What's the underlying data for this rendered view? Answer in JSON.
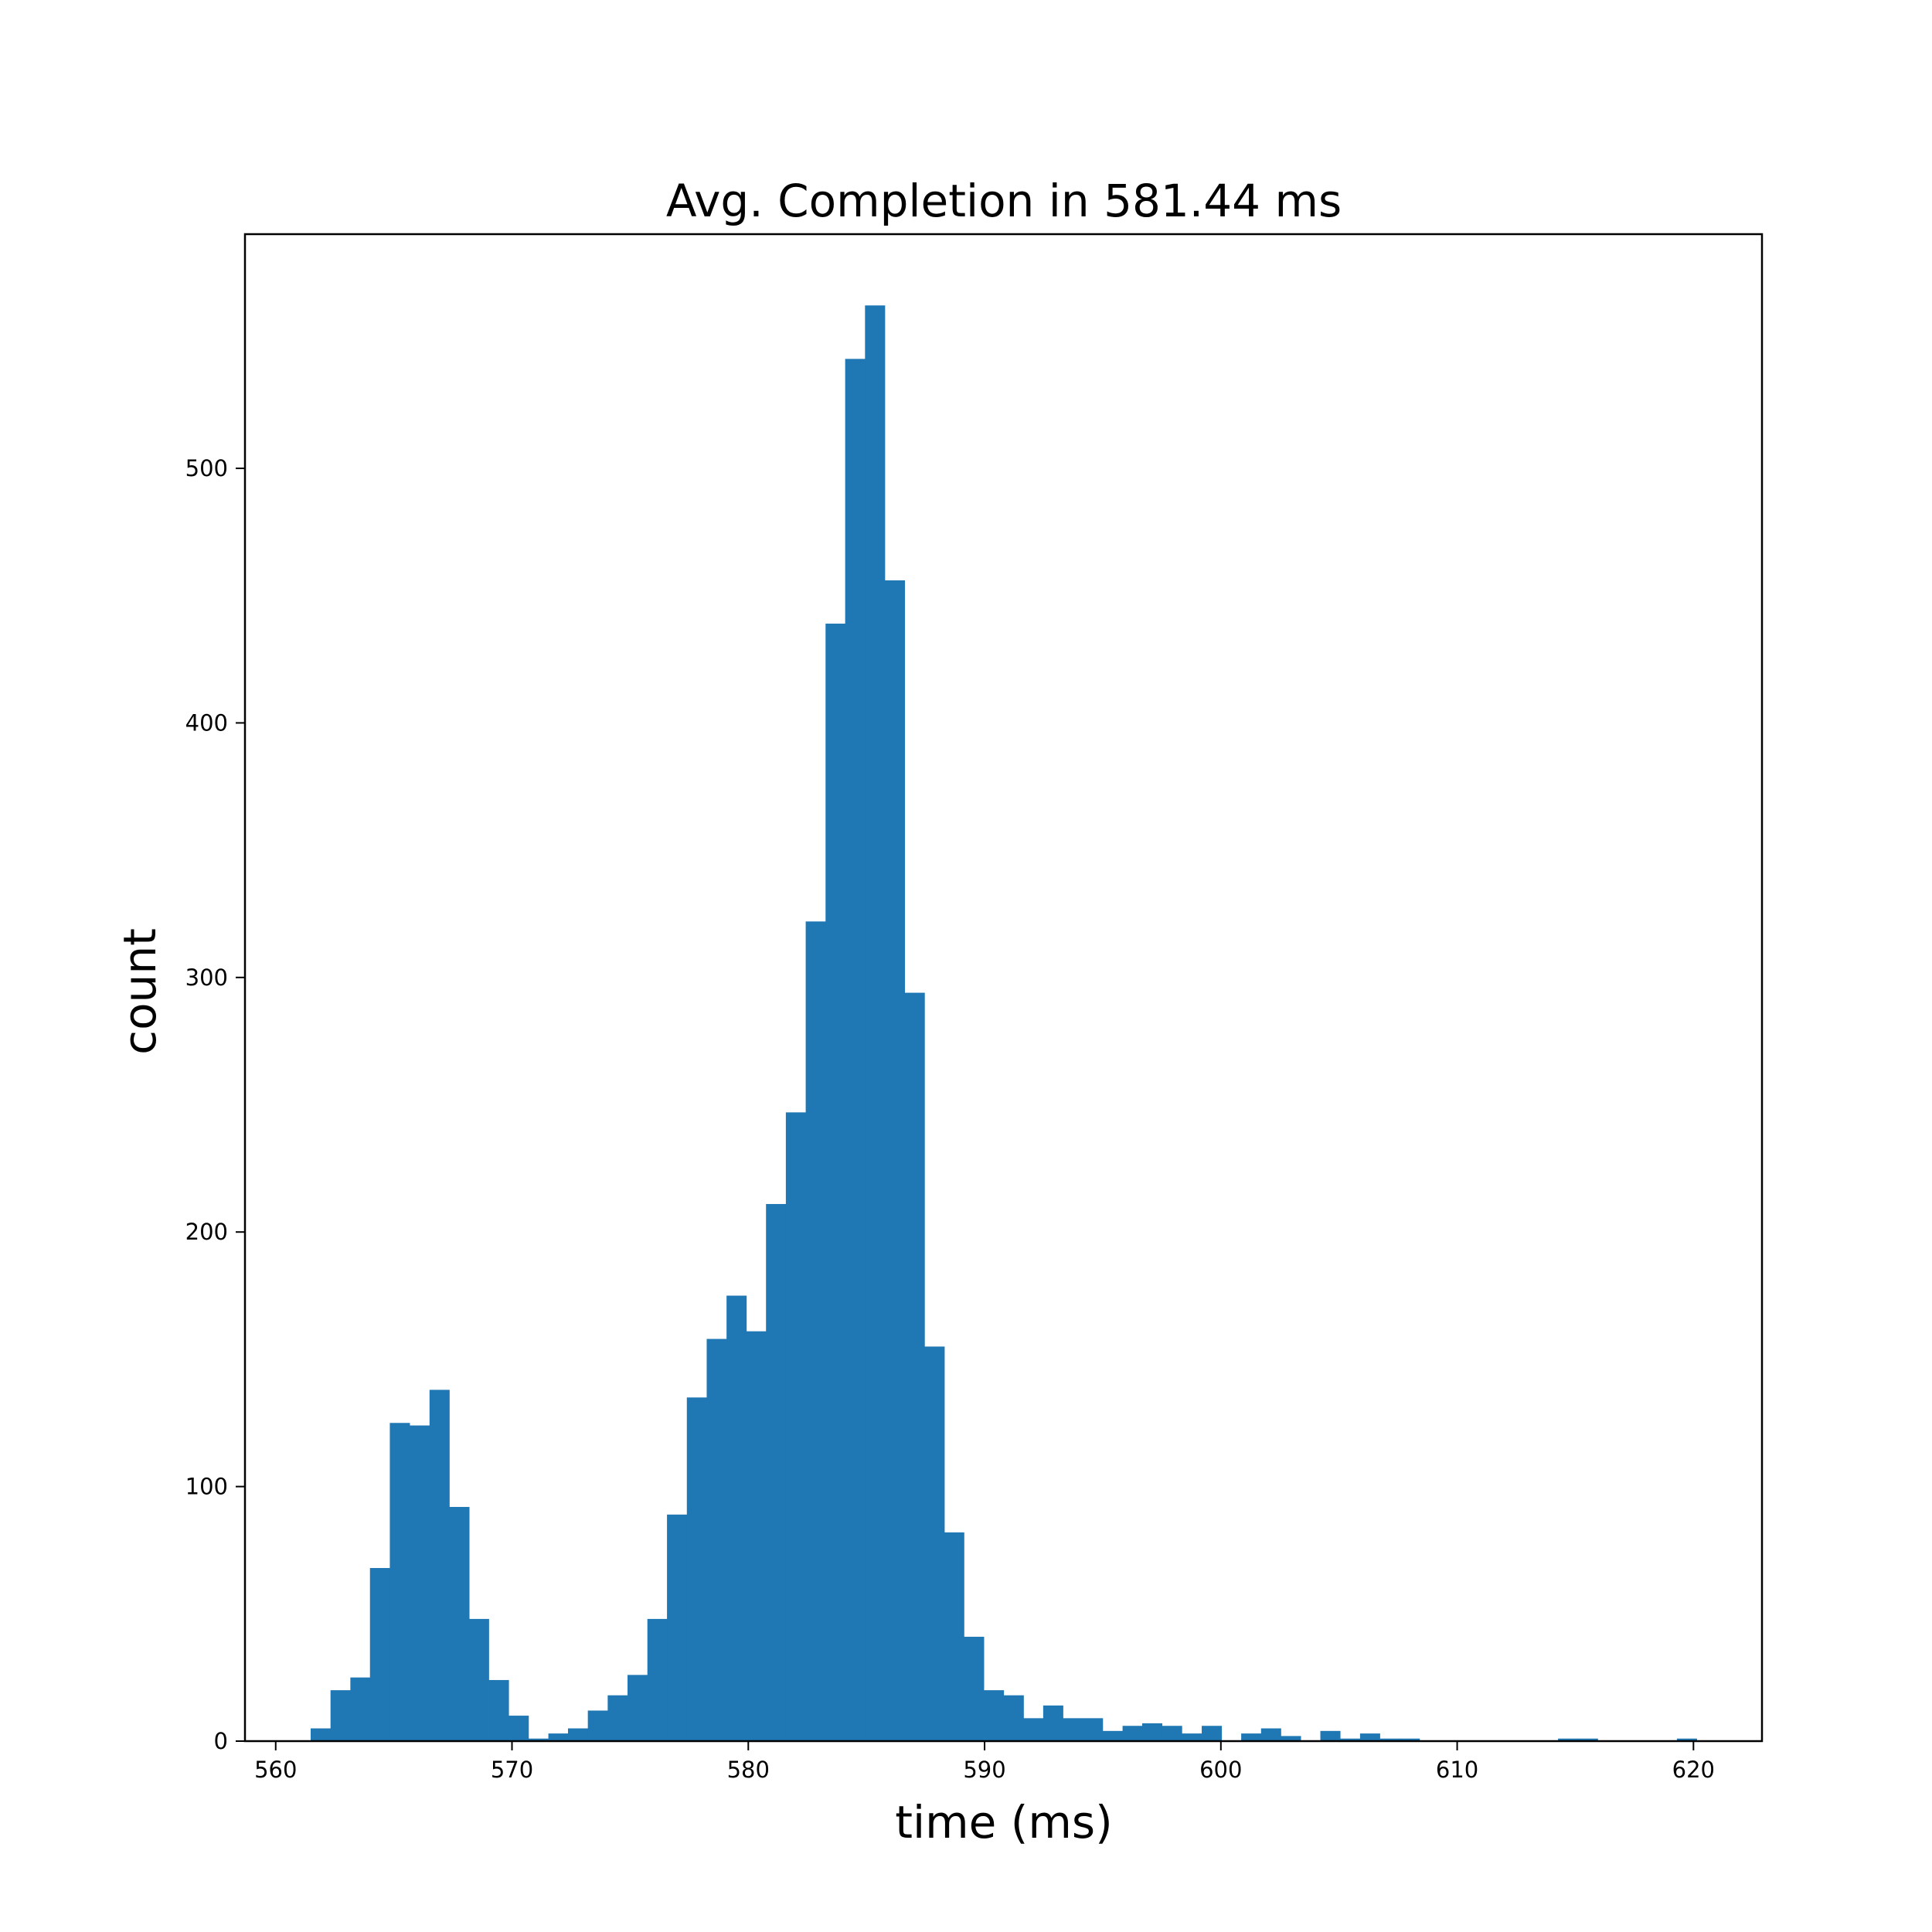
{
  "chart_data": {
    "type": "bar",
    "title": "Avg. Completion in 581.44 ms",
    "xlabel": "time (ms)",
    "ylabel": "count",
    "xlim": [
      558.7,
      622.9
    ],
    "ylim": [
      0,
      592
    ],
    "x_ticks": [
      560,
      570,
      580,
      590,
      600,
      610,
      620
    ],
    "x_tick_labels": [
      "560",
      "570",
      "580",
      "590",
      "600",
      "610",
      "620"
    ],
    "y_ticks": [
      0,
      100,
      200,
      300,
      400,
      500
    ],
    "y_tick_labels": [
      "0",
      "100",
      "200",
      "300",
      "400",
      "500"
    ],
    "bin_width": 0.838,
    "bin_left_edges": [
      561.48,
      562.32,
      563.16,
      563.99,
      564.83,
      565.67,
      566.51,
      567.35,
      568.18,
      569.02,
      569.86,
      570.7,
      571.54,
      572.37,
      573.21,
      574.05,
      574.89,
      575.73,
      576.56,
      577.4,
      578.24,
      579.08,
      579.91,
      580.75,
      581.59,
      582.43,
      583.27,
      584.1,
      584.94,
      585.78,
      586.62,
      587.46,
      588.29,
      589.13,
      589.97,
      590.81,
      591.65,
      592.48,
      593.32,
      594.16,
      595.0,
      595.84,
      596.67,
      597.51,
      598.35,
      599.19,
      600.02,
      600.86,
      601.7,
      602.54,
      603.38,
      604.21,
      605.05,
      605.89,
      606.73,
      607.57,
      608.4,
      609.24,
      610.08,
      610.92,
      611.76,
      612.59,
      613.43,
      614.27,
      615.11,
      615.94,
      616.78,
      617.62,
      618.46,
      619.3
    ],
    "counts": [
      5,
      20,
      25,
      68,
      125,
      124,
      138,
      92,
      48,
      24,
      10,
      1,
      3,
      5,
      12,
      18,
      26,
      48,
      89,
      135,
      158,
      175,
      161,
      211,
      247,
      322,
      439,
      543,
      564,
      456,
      294,
      155,
      82,
      41,
      20,
      18,
      9,
      14,
      9,
      9,
      4,
      6,
      7,
      6,
      3,
      6,
      0,
      3,
      5,
      2,
      0,
      4,
      1,
      3,
      1,
      1,
      0,
      0,
      0,
      0,
      0,
      0,
      0,
      1,
      1,
      0,
      0,
      0,
      0,
      1
    ],
    "bar_color": "#1f77b4",
    "grid": false,
    "legend": "none"
  }
}
